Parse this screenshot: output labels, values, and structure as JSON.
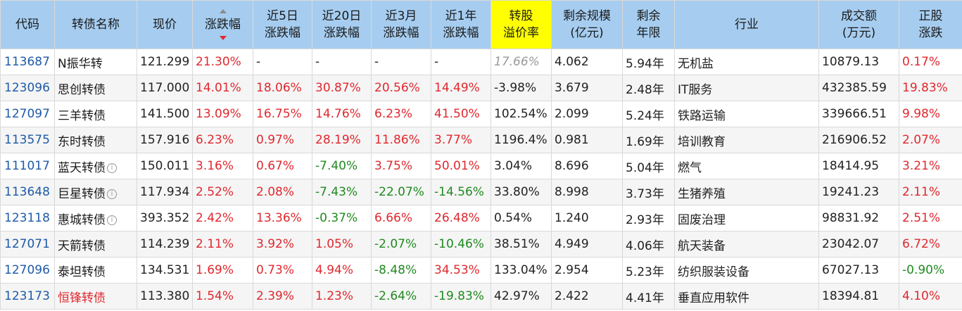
{
  "columns": [
    "代码",
    "转债名称",
    "现价",
    "涨跌幅",
    "近5日\n涨跌幅",
    "近20日\n涨跌幅",
    "近3月\n涨跌幅",
    "近1年\n涨跌幅",
    "转股\n溢价率",
    "剩余规模\n(亿元)",
    "剩余\n年限",
    "行业",
    "成交额\n(万元)",
    "正股\n涨跌"
  ],
  "header": {
    "code": "代码",
    "name": "转债名称",
    "price": "现价",
    "chg": "涨跌幅",
    "chg5d_l1": "近5日",
    "chg5d_l2": "涨跌幅",
    "chg20d_l1": "近20日",
    "chg20d_l2": "涨跌幅",
    "chg3m_l1": "近3月",
    "chg3m_l2": "涨跌幅",
    "chg1y_l1": "近1年",
    "chg1y_l2": "涨跌幅",
    "prem_l1": "转股",
    "prem_l2": "溢价率",
    "scale_l1": "剩余规模",
    "scale_l2": "(亿元)",
    "years_l1": "剩余",
    "years_l2": "年限",
    "industry": "行业",
    "volume_l1": "成交额",
    "volume_l2": "(万元)",
    "stock_l1": "正股",
    "stock_l2": "涨跌"
  },
  "colors": {
    "header_bg": "#a6cdf0",
    "highlight": "#ffff00",
    "up": "#e0282e",
    "down": "#1f8a1f",
    "code": "#1e5aa8"
  },
  "rows": [
    {
      "code": "113687",
      "name": "N振华转",
      "info": false,
      "price": "121.299",
      "chg": "21.30%",
      "chg5d": "-",
      "chg20d": "-",
      "chg3m": "-",
      "chg1y": "-",
      "prem": "17.66%",
      "scale": "4.062",
      "years": "5.94年",
      "industry": "无机盐",
      "volume": "10879.13",
      "stock": "0.17%"
    },
    {
      "code": "123096",
      "name": "思创转债",
      "info": false,
      "price": "117.000",
      "chg": "14.01%",
      "chg5d": "18.06%",
      "chg20d": "30.87%",
      "chg3m": "20.56%",
      "chg1y": "14.49%",
      "prem": "-3.98%",
      "scale": "3.679",
      "years": "2.48年",
      "industry": "IT服务",
      "volume": "432385.59",
      "stock": "19.83%"
    },
    {
      "code": "127097",
      "name": "三羊转债",
      "info": false,
      "price": "141.500",
      "chg": "13.09%",
      "chg5d": "16.75%",
      "chg20d": "14.76%",
      "chg3m": "6.23%",
      "chg1y": "41.50%",
      "prem": "102.54%",
      "scale": "2.099",
      "years": "5.24年",
      "industry": "铁路运输",
      "volume": "339666.51",
      "stock": "9.98%"
    },
    {
      "code": "113575",
      "name": "东时转债",
      "info": false,
      "price": "157.916",
      "chg": "6.23%",
      "chg5d": "0.97%",
      "chg20d": "28.19%",
      "chg3m": "11.86%",
      "chg1y": "3.77%",
      "prem": "1196.4%",
      "scale": "0.981",
      "years": "1.69年",
      "industry": "培训教育",
      "volume": "216906.52",
      "stock": "2.07%"
    },
    {
      "code": "111017",
      "name": "蓝天转债",
      "info": true,
      "price": "150.011",
      "chg": "3.16%",
      "chg5d": "0.67%",
      "chg20d": "-7.40%",
      "chg3m": "3.75%",
      "chg1y": "50.01%",
      "prem": "3.04%",
      "scale": "8.696",
      "years": "5.04年",
      "industry": "燃气",
      "volume": "18414.95",
      "stock": "3.21%"
    },
    {
      "code": "113648",
      "name": "巨星转债",
      "info": true,
      "price": "117.934",
      "chg": "2.52%",
      "chg5d": "2.08%",
      "chg20d": "-7.43%",
      "chg3m": "-22.07%",
      "chg1y": "-14.56%",
      "prem": "33.80%",
      "scale": "8.998",
      "years": "3.73年",
      "industry": "生猪养殖",
      "volume": "19241.23",
      "stock": "2.11%"
    },
    {
      "code": "123118",
      "name": "惠城转债",
      "info": true,
      "price": "393.352",
      "chg": "2.42%",
      "chg5d": "13.36%",
      "chg20d": "-0.37%",
      "chg3m": "6.66%",
      "chg1y": "26.48%",
      "prem": "0.54%",
      "scale": "1.240",
      "years": "2.93年",
      "industry": "固废治理",
      "volume": "98831.92",
      "stock": "2.51%"
    },
    {
      "code": "127071",
      "name": "天箭转债",
      "info": false,
      "price": "114.239",
      "chg": "2.11%",
      "chg5d": "3.92%",
      "chg20d": "1.05%",
      "chg3m": "-2.07%",
      "chg1y": "-10.46%",
      "prem": "38.51%",
      "scale": "4.949",
      "years": "4.06年",
      "industry": "航天装备",
      "volume": "23042.07",
      "stock": "6.72%"
    },
    {
      "code": "127096",
      "name": "泰坦转债",
      "info": false,
      "price": "134.531",
      "chg": "1.69%",
      "chg5d": "0.73%",
      "chg20d": "4.94%",
      "chg3m": "-8.48%",
      "chg1y": "34.53%",
      "prem": "133.04%",
      "scale": "2.954",
      "years": "5.23年",
      "industry": "纺织服装设备",
      "volume": "67027.13",
      "stock": "-0.90%"
    },
    {
      "code": "123173",
      "name": "恒锋转债",
      "info": false,
      "name_red": true,
      "price": "113.380",
      "chg": "1.54%",
      "chg5d": "2.39%",
      "chg20d": "1.23%",
      "chg3m": "-2.64%",
      "chg1y": "-19.83%",
      "prem": "42.97%",
      "scale": "2.422",
      "years": "4.41年",
      "industry": "垂直应用软件",
      "volume": "18394.81",
      "stock": "4.10%"
    }
  ]
}
